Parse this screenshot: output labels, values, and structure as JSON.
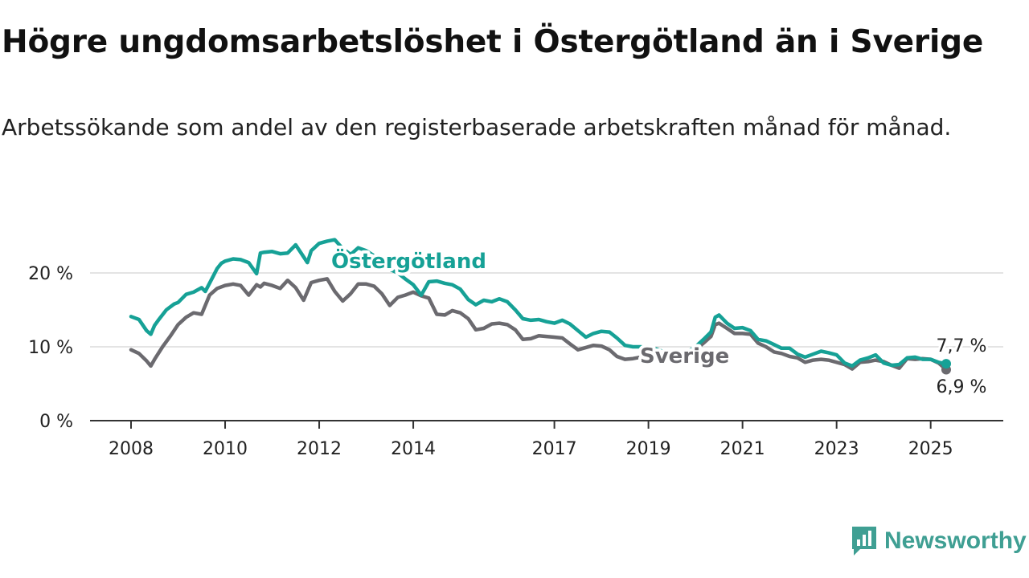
{
  "title": "Högre ungdomsarbetslöshet i Östergötland än i Sverige",
  "subtitle": "Arbetssökande som andel av den registerbaserade arbetskraften månad för månad.",
  "brand": {
    "name": "Newsworthy",
    "icon": "newsworthy-logo-icon",
    "color": "#3f9f93"
  },
  "chart_data": {
    "type": "line",
    "x_unit": "year (decimal)",
    "xlim": [
      2008,
      2026.2
    ],
    "ylim": [
      0,
      27
    ],
    "grid": true,
    "y_ticks": [
      {
        "value": 0,
        "label": "0 %"
      },
      {
        "value": 10,
        "label": "10 %"
      },
      {
        "value": 20,
        "label": "20 %"
      }
    ],
    "x_ticks": [
      {
        "value": 2008,
        "label": "2008"
      },
      {
        "value": 2010,
        "label": "2010"
      },
      {
        "value": 2012,
        "label": "2012"
      },
      {
        "value": 2014,
        "label": "2014"
      },
      {
        "value": 2017,
        "label": "2017"
      },
      {
        "value": 2019,
        "label": "2019"
      },
      {
        "value": 2021,
        "label": "2021"
      },
      {
        "value": 2023,
        "label": "2023"
      },
      {
        "value": 2025,
        "label": "2025"
      }
    ],
    "series": [
      {
        "name": "Östergötland",
        "color": "#16a196",
        "end_label": "7,7 %",
        "x": [
          2008.0,
          2008.17,
          2008.33,
          2008.42,
          2008.5,
          2008.58,
          2008.75,
          2008.92,
          2009.0,
          2009.17,
          2009.33,
          2009.5,
          2009.58,
          2009.75,
          2009.83,
          2009.92,
          2010.0,
          2010.17,
          2010.33,
          2010.5,
          2010.67,
          2010.75,
          2010.83,
          2011.0,
          2011.17,
          2011.33,
          2011.5,
          2011.75,
          2011.83,
          2012.0,
          2012.17,
          2012.33,
          2012.5,
          2012.67,
          2012.83,
          2013.0,
          2013.17,
          2013.33,
          2013.42,
          2013.5,
          2013.67,
          2013.83,
          2014.0,
          2014.17,
          2014.33,
          2014.5,
          2014.67,
          2014.83,
          2015.0,
          2015.17,
          2015.33,
          2015.5,
          2015.67,
          2015.83,
          2016.0,
          2016.17,
          2016.33,
          2016.5,
          2016.67,
          2016.83,
          2017.0,
          2017.17,
          2017.33,
          2017.5,
          2017.67,
          2017.83,
          2018.0,
          2018.17,
          2018.33,
          2018.5,
          2018.67,
          2018.83,
          2019.0,
          2019.17,
          2019.33,
          2019.5,
          2019.67,
          2019.83,
          2020.0,
          2020.17,
          2020.33,
          2020.42,
          2020.5,
          2020.67,
          2020.83,
          2021.0,
          2021.17,
          2021.33,
          2021.5,
          2021.67,
          2021.83,
          2022.0,
          2022.17,
          2022.33,
          2022.5,
          2022.67,
          2022.83,
          2023.0,
          2023.17,
          2023.33,
          2023.5,
          2023.67,
          2023.83,
          2024.0,
          2024.17,
          2024.33,
          2024.5,
          2024.67,
          2024.83,
          2025.0,
          2025.17,
          2025.33
        ],
        "y": [
          14.1,
          13.7,
          12.2,
          11.7,
          12.9,
          13.6,
          15.0,
          15.8,
          16.0,
          17.1,
          17.4,
          18.0,
          17.5,
          19.6,
          20.6,
          21.3,
          21.6,
          21.9,
          21.8,
          21.4,
          19.9,
          22.7,
          22.8,
          22.9,
          22.6,
          22.7,
          23.8,
          21.4,
          23.0,
          24.0,
          24.3,
          24.5,
          23.3,
          22.5,
          23.4,
          23.0,
          22.3,
          21.6,
          20.8,
          20.5,
          20.0,
          19.2,
          18.4,
          17.0,
          18.8,
          18.9,
          18.6,
          18.4,
          17.8,
          16.4,
          15.7,
          16.3,
          16.1,
          16.5,
          16.1,
          15.0,
          13.8,
          13.6,
          13.7,
          13.4,
          13.2,
          13.6,
          13.1,
          12.2,
          11.3,
          11.8,
          12.1,
          12.0,
          11.2,
          10.2,
          10.0,
          10.0,
          9.9,
          9.7,
          9.3,
          8.8,
          8.6,
          9.3,
          10.0,
          11.0,
          12.0,
          14.0,
          14.3,
          13.2,
          12.5,
          12.6,
          12.2,
          11.0,
          10.8,
          10.3,
          9.8,
          9.8,
          9.0,
          8.6,
          9.0,
          9.4,
          9.2,
          8.9,
          7.8,
          7.4,
          8.2,
          8.5,
          8.9,
          7.8,
          7.5,
          7.6,
          8.5,
          8.6,
          8.3,
          8.3,
          7.9,
          7.7
        ]
      },
      {
        "name": "Sverige",
        "color": "#6b6a6f",
        "end_label": "6,9 %",
        "x": [
          2008.0,
          2008.17,
          2008.33,
          2008.42,
          2008.5,
          2008.67,
          2008.83,
          2009.0,
          2009.17,
          2009.33,
          2009.5,
          2009.67,
          2009.83,
          2010.0,
          2010.17,
          2010.33,
          2010.5,
          2010.67,
          2010.75,
          2010.83,
          2011.0,
          2011.17,
          2011.33,
          2011.5,
          2011.67,
          2011.83,
          2012.0,
          2012.17,
          2012.33,
          2012.5,
          2012.67,
          2012.83,
          2013.0,
          2013.17,
          2013.33,
          2013.5,
          2013.67,
          2013.83,
          2014.0,
          2014.17,
          2014.33,
          2014.5,
          2014.67,
          2014.83,
          2015.0,
          2015.17,
          2015.33,
          2015.5,
          2015.67,
          2015.83,
          2016.0,
          2016.17,
          2016.33,
          2016.5,
          2016.67,
          2016.83,
          2017.0,
          2017.17,
          2017.33,
          2017.5,
          2017.67,
          2017.83,
          2018.0,
          2018.17,
          2018.33,
          2018.5,
          2018.67,
          2018.83,
          2019.0,
          2019.17,
          2019.33,
          2019.5,
          2019.67,
          2019.83,
          2020.0,
          2020.17,
          2020.33,
          2020.42,
          2020.5,
          2020.67,
          2020.83,
          2021.0,
          2021.17,
          2021.33,
          2021.5,
          2021.67,
          2021.83,
          2022.0,
          2022.17,
          2022.33,
          2022.5,
          2022.67,
          2022.83,
          2023.0,
          2023.17,
          2023.33,
          2023.5,
          2023.67,
          2023.83,
          2024.0,
          2024.17,
          2024.33,
          2024.5,
          2024.67,
          2024.83,
          2025.0,
          2025.17,
          2025.33
        ],
        "y": [
          9.6,
          9.1,
          8.1,
          7.4,
          8.3,
          10.0,
          11.4,
          13.0,
          14.0,
          14.6,
          14.4,
          17.0,
          17.9,
          18.3,
          18.5,
          18.3,
          17.0,
          18.4,
          18.1,
          18.6,
          18.3,
          17.9,
          19.0,
          18.0,
          16.3,
          18.7,
          19.0,
          19.2,
          17.5,
          16.2,
          17.2,
          18.5,
          18.5,
          18.2,
          17.2,
          15.6,
          16.7,
          17.0,
          17.4,
          16.9,
          16.6,
          14.4,
          14.3,
          14.9,
          14.6,
          13.8,
          12.3,
          12.5,
          13.1,
          13.2,
          13.0,
          12.3,
          11.0,
          11.1,
          11.5,
          11.4,
          11.3,
          11.2,
          10.4,
          9.6,
          9.9,
          10.2,
          10.1,
          9.6,
          8.7,
          8.3,
          8.4,
          8.6,
          8.9,
          9.0,
          8.9,
          8.7,
          8.6,
          8.9,
          9.6,
          10.5,
          11.4,
          13.0,
          13.2,
          12.5,
          11.8,
          11.8,
          11.7,
          10.5,
          10.0,
          9.3,
          9.1,
          8.7,
          8.5,
          7.9,
          8.2,
          8.3,
          8.2,
          7.9,
          7.6,
          7.0,
          7.9,
          8.0,
          8.2,
          8.0,
          7.5,
          7.1,
          8.4,
          8.3,
          8.4,
          8.3,
          7.8,
          6.9
        ]
      }
    ]
  }
}
